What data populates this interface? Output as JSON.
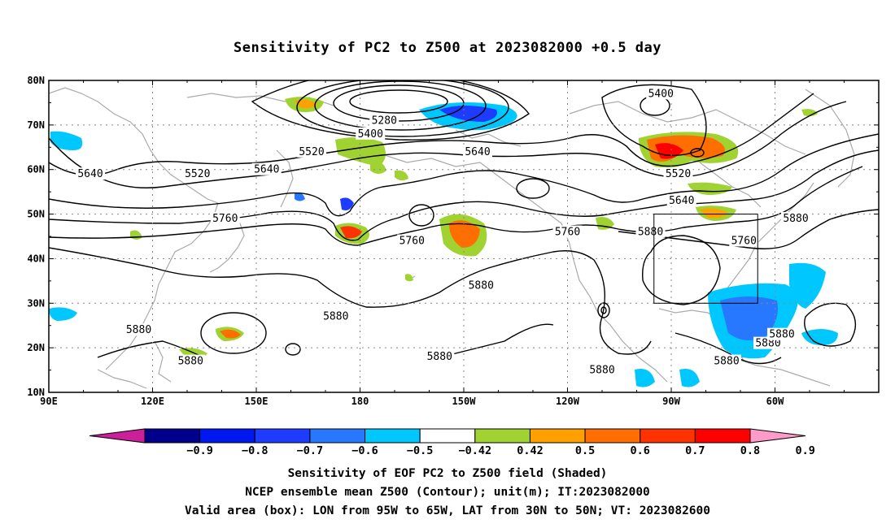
{
  "title": "Sensitivity of PC2 to Z500 at 2023082000 +0.5 day",
  "axes": {
    "lat_labels": [
      "80N",
      "70N",
      "60N",
      "50N",
      "40N",
      "30N",
      "20N",
      "10N"
    ],
    "lon_labels": [
      "90E",
      "120E",
      "150E",
      "180",
      "150W",
      "120W",
      "90W",
      "60W"
    ]
  },
  "contour_labels": [
    {
      "text": "5400",
      "lon": 183,
      "lat": 68
    },
    {
      "text": "5280",
      "lon": 187,
      "lat": 71
    },
    {
      "text": "5400",
      "lon": 267,
      "lat": 77
    },
    {
      "text": "5520",
      "lon": 133,
      "lat": 59
    },
    {
      "text": "5520",
      "lon": 166,
      "lat": 64
    },
    {
      "text": "5520",
      "lon": 272,
      "lat": 59
    },
    {
      "text": "5640",
      "lon": 102,
      "lat": 59
    },
    {
      "text": "5640",
      "lon": 153,
      "lat": 60
    },
    {
      "text": "5640",
      "lon": 214,
      "lat": 64
    },
    {
      "text": "5640",
      "lon": 273,
      "lat": 53
    },
    {
      "text": "5760",
      "lon": 141,
      "lat": 49
    },
    {
      "text": "5760",
      "lon": 195,
      "lat": 44
    },
    {
      "text": "5760",
      "lon": 240,
      "lat": 46
    },
    {
      "text": "5760",
      "lon": 291,
      "lat": 44
    },
    {
      "text": "5880",
      "lon": 264,
      "lat": 46
    },
    {
      "text": "5880",
      "lon": 306,
      "lat": 49
    },
    {
      "text": "5880",
      "lon": 215,
      "lat": 34
    },
    {
      "text": "5880",
      "lon": 173,
      "lat": 27
    },
    {
      "text": "5880",
      "lon": 116,
      "lat": 24
    },
    {
      "text": "5880",
      "lon": 131,
      "lat": 17
    },
    {
      "text": "5880",
      "lon": 203,
      "lat": 18
    },
    {
      "text": "5880",
      "lon": 250,
      "lat": 15
    },
    {
      "text": "5880",
      "lon": 286,
      "lat": 17
    },
    {
      "text": "5880",
      "lon": 298,
      "lat": 21
    },
    {
      "text": "5880",
      "lon": 302,
      "lat": 23
    }
  ],
  "box": {
    "lon_min": 265,
    "lon_max": 295,
    "lat_min": 30,
    "lat_max": 50
  },
  "colorbar": {
    "labels": [
      "-0.9",
      "-0.8",
      "-0.7",
      "-0.6",
      "-0.5",
      "-0.42",
      "0.42",
      "0.5",
      "0.6",
      "0.7",
      "0.8",
      "0.9"
    ],
    "colors": [
      "#cc1f9a",
      "#00008c",
      "#0018f0",
      "#1e3cff",
      "#2878ff",
      "#00c8ff",
      "#ffffff",
      "#a0d232",
      "#ffa000",
      "#ff6e00",
      "#ff3200",
      "#ff0000",
      "#ff9bc8"
    ]
  },
  "captions": [
    "Sensitivity of EOF PC2 to Z500 field (Shaded)",
    "NCEP ensemble mean Z500 (Contour); unit(m); IT:2023082000",
    "Valid area (box): LON from 95W to 65W, LAT from 30N to 50N; VT: 2023082600"
  ]
}
